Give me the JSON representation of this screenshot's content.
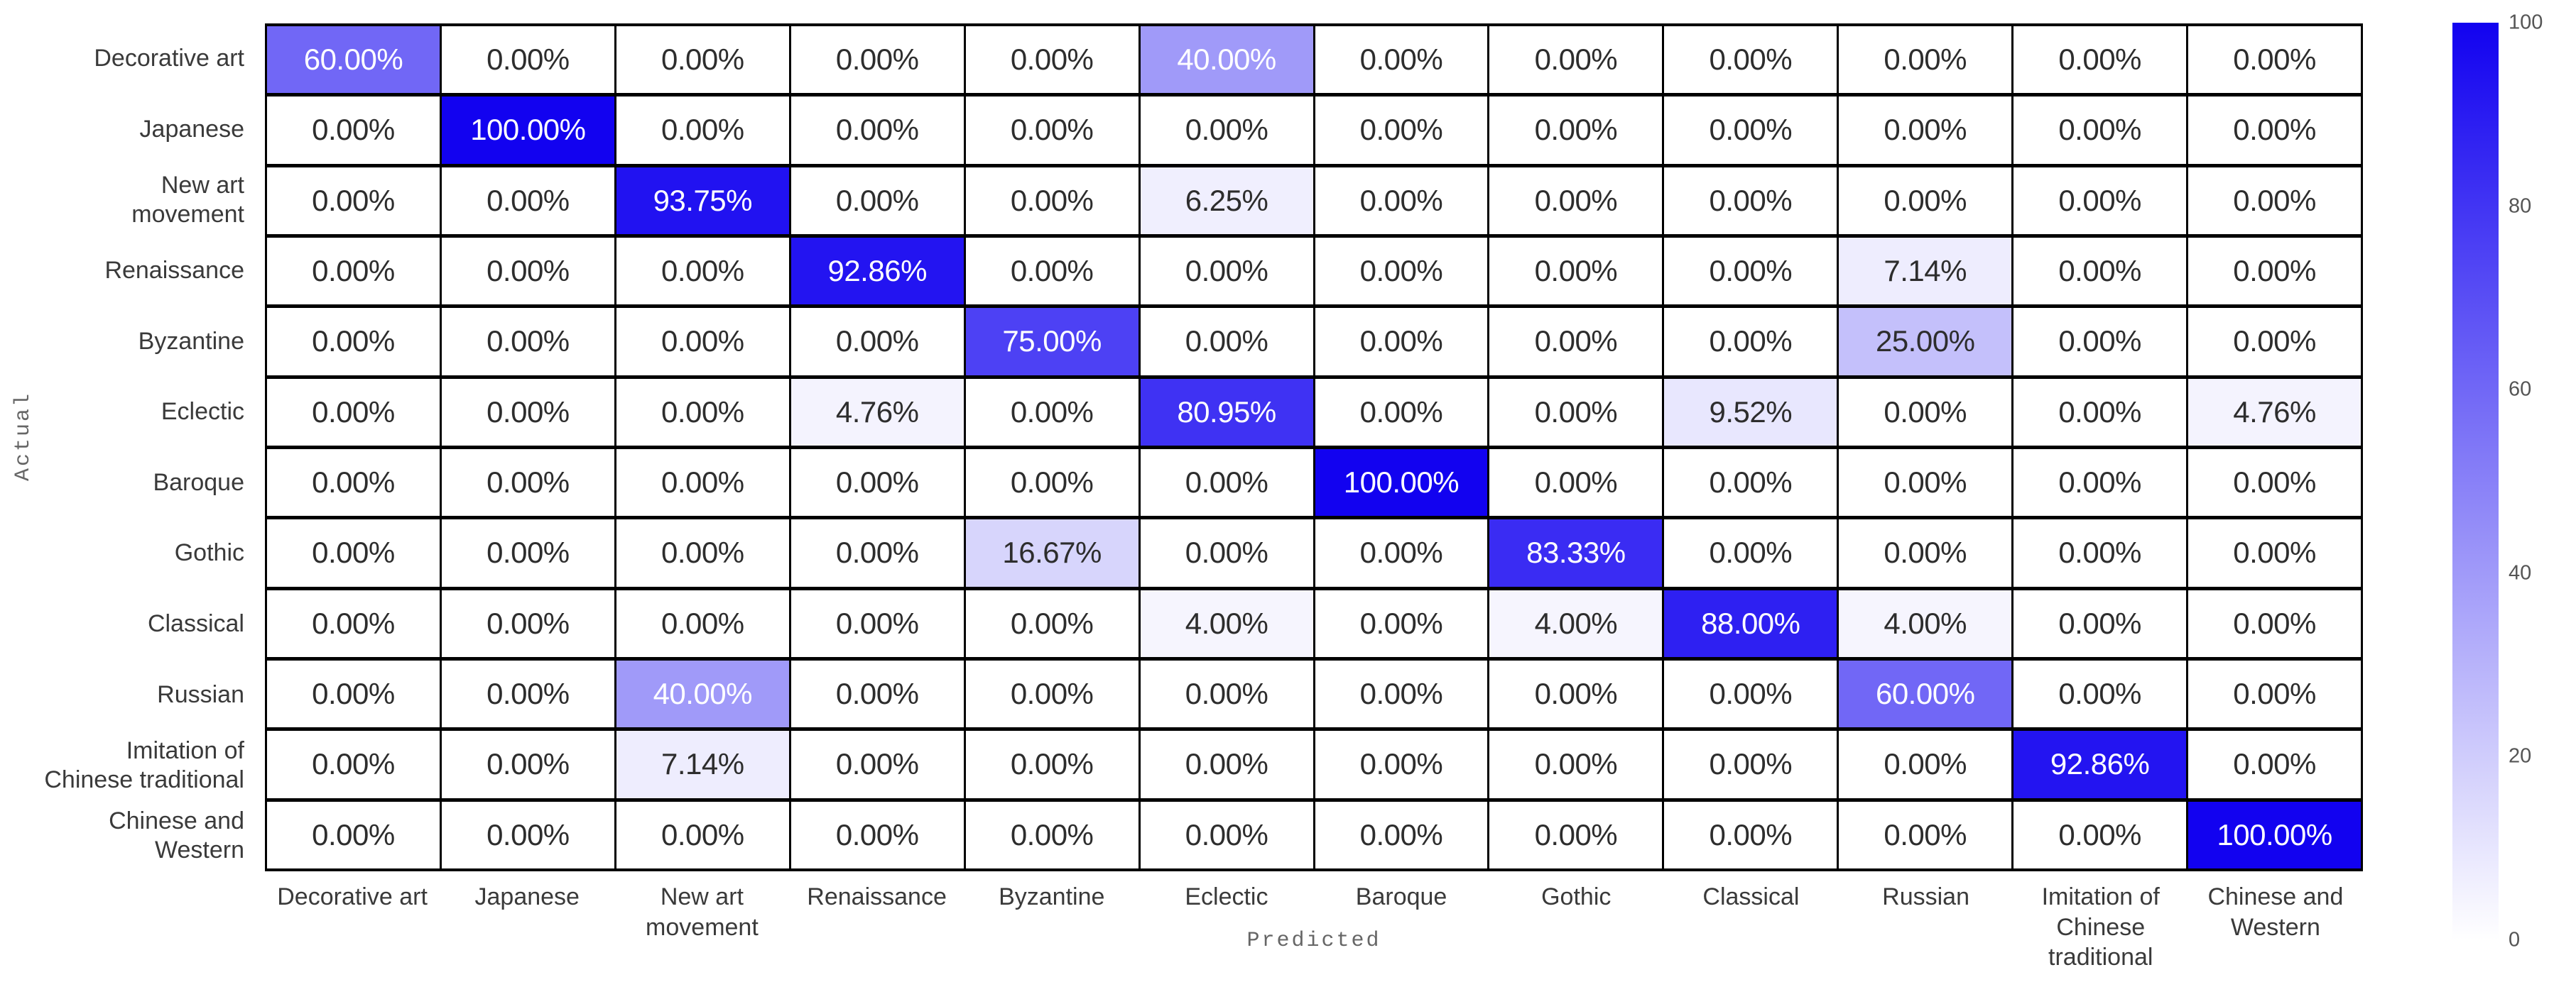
{
  "figure": {
    "xlabel": "Predicted",
    "ylabel": "Actual"
  },
  "colors": {
    "heat_high": "#1202f0",
    "heat_low": "#ffffff",
    "grid_line": "#000000",
    "cell_text_dark": "#2d2d2d",
    "cell_text_light": "#ffffff",
    "axis_tick_text": "#3a3a3a",
    "axis_title_text": "#666666"
  },
  "chart_data": {
    "type": "heatmap",
    "title": "",
    "xlabel": "Predicted",
    "ylabel": "Actual",
    "value_unit": "percent",
    "value_format": "0.00%",
    "categories": [
      "Decorative art",
      "Japanese",
      "New art\nmovement",
      "Renaissance",
      "Byzantine",
      "Eclectic",
      "Baroque",
      "Gothic",
      "Classical",
      "Russian",
      "Imitation of\nChinese traditional",
      "Chinese and\nWestern"
    ],
    "matrix": [
      [
        60.0,
        0.0,
        0.0,
        0.0,
        0.0,
        40.0,
        0.0,
        0.0,
        0.0,
        0.0,
        0.0,
        0.0
      ],
      [
        0.0,
        100.0,
        0.0,
        0.0,
        0.0,
        0.0,
        0.0,
        0.0,
        0.0,
        0.0,
        0.0,
        0.0
      ],
      [
        0.0,
        0.0,
        93.75,
        0.0,
        0.0,
        6.25,
        0.0,
        0.0,
        0.0,
        0.0,
        0.0,
        0.0
      ],
      [
        0.0,
        0.0,
        0.0,
        92.86,
        0.0,
        0.0,
        0.0,
        0.0,
        0.0,
        7.14,
        0.0,
        0.0
      ],
      [
        0.0,
        0.0,
        0.0,
        0.0,
        75.0,
        0.0,
        0.0,
        0.0,
        0.0,
        25.0,
        0.0,
        0.0
      ],
      [
        0.0,
        0.0,
        0.0,
        4.76,
        0.0,
        80.95,
        0.0,
        0.0,
        9.52,
        0.0,
        0.0,
        4.76
      ],
      [
        0.0,
        0.0,
        0.0,
        0.0,
        0.0,
        0.0,
        100.0,
        0.0,
        0.0,
        0.0,
        0.0,
        0.0
      ],
      [
        0.0,
        0.0,
        0.0,
        0.0,
        16.67,
        0.0,
        0.0,
        83.33,
        0.0,
        0.0,
        0.0,
        0.0
      ],
      [
        0.0,
        0.0,
        0.0,
        0.0,
        0.0,
        4.0,
        0.0,
        4.0,
        88.0,
        4.0,
        0.0,
        0.0
      ],
      [
        0.0,
        0.0,
        40.0,
        0.0,
        0.0,
        0.0,
        0.0,
        0.0,
        0.0,
        60.0,
        0.0,
        0.0
      ],
      [
        0.0,
        0.0,
        7.14,
        0.0,
        0.0,
        0.0,
        0.0,
        0.0,
        0.0,
        0.0,
        92.86,
        0.0
      ],
      [
        0.0,
        0.0,
        0.0,
        0.0,
        0.0,
        0.0,
        0.0,
        0.0,
        0.0,
        0.0,
        0.0,
        100.0
      ]
    ],
    "colorbar": {
      "min": 0,
      "max": 100,
      "ticks": [
        100,
        80,
        60,
        40,
        20,
        0
      ],
      "position": "right",
      "high_color": "#1202f0",
      "low_color": "#ffffff"
    },
    "legend": "none",
    "grid": "black cell borders"
  }
}
